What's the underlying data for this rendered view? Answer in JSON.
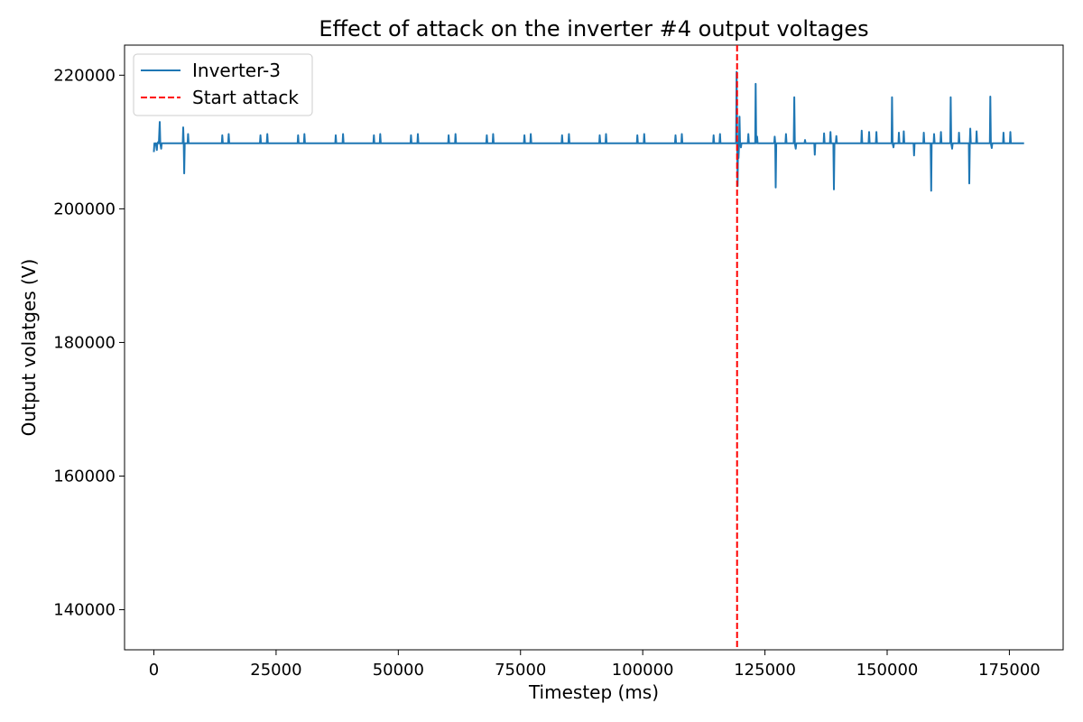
{
  "chart_data": {
    "type": "line",
    "title": "Effect of attack on the inverter #4 output voltages",
    "xlabel": "Timestep (ms)",
    "ylabel": "Output volatges (V)",
    "xlim": [
      -6000,
      186000
    ],
    "ylim": [
      134000,
      224500
    ],
    "xticks": [
      0,
      25000,
      50000,
      75000,
      100000,
      125000,
      150000,
      175000
    ],
    "xtick_labels": [
      "0",
      "25000",
      "50000",
      "75000",
      "100000",
      "125000",
      "150000",
      "175000"
    ],
    "yticks": [
      140000,
      160000,
      180000,
      200000,
      220000
    ],
    "ytick_labels": [
      "140000",
      "160000",
      "180000",
      "200000",
      "220000"
    ],
    "grid": false,
    "legend_position": "top-left",
    "baseline": 209800,
    "x_max": 178000,
    "series": [
      {
        "name": "Inverter-3",
        "color": "#1f77b4",
        "style": "solid",
        "events": [
          [
            0,
            208500
          ],
          [
            300,
            209600
          ],
          [
            600,
            208800
          ],
          [
            900,
            210000
          ],
          [
            1200,
            213000
          ],
          [
            1500,
            209000
          ],
          [
            6000,
            212200
          ],
          [
            6200,
            205300
          ],
          [
            7000,
            211200
          ],
          [
            14000,
            211000
          ],
          [
            15300,
            211200
          ],
          [
            21800,
            211000
          ],
          [
            23200,
            211200
          ],
          [
            29500,
            211000
          ],
          [
            30800,
            211200
          ],
          [
            37200,
            211000
          ],
          [
            38700,
            211200
          ],
          [
            45000,
            211000
          ],
          [
            46300,
            211200
          ],
          [
            52600,
            211000
          ],
          [
            54000,
            211200
          ],
          [
            60300,
            211000
          ],
          [
            61700,
            211200
          ],
          [
            68100,
            211000
          ],
          [
            69400,
            211200
          ],
          [
            75800,
            211000
          ],
          [
            77100,
            211200
          ],
          [
            83500,
            211000
          ],
          [
            84900,
            211200
          ],
          [
            91200,
            211000
          ],
          [
            92500,
            211200
          ],
          [
            98900,
            211000
          ],
          [
            100300,
            211200
          ],
          [
            106700,
            211000
          ],
          [
            108000,
            211200
          ],
          [
            114500,
            211000
          ],
          [
            115800,
            211200
          ],
          [
            119200,
            220500
          ],
          [
            119400,
            203400
          ],
          [
            119600,
            207600
          ],
          [
            119800,
            213800
          ],
          [
            120100,
            209200
          ],
          [
            121600,
            211200
          ],
          [
            123100,
            218700
          ],
          [
            123400,
            210800
          ],
          [
            127000,
            210800
          ],
          [
            127200,
            203200
          ],
          [
            129300,
            211200
          ],
          [
            131000,
            216700
          ],
          [
            131300,
            209000
          ],
          [
            133200,
            210300
          ],
          [
            135200,
            208100
          ],
          [
            137100,
            211300
          ],
          [
            138400,
            211500
          ],
          [
            139100,
            202900
          ],
          [
            139600,
            210900
          ],
          [
            144800,
            211700
          ],
          [
            146300,
            211500
          ],
          [
            147800,
            211500
          ],
          [
            151000,
            216700
          ],
          [
            151300,
            209200
          ],
          [
            152400,
            211400
          ],
          [
            153400,
            211600
          ],
          [
            155500,
            208000
          ],
          [
            157500,
            211400
          ],
          [
            159000,
            202700
          ],
          [
            159600,
            211200
          ],
          [
            161000,
            211500
          ],
          [
            163000,
            216700
          ],
          [
            163300,
            209000
          ],
          [
            164700,
            211400
          ],
          [
            166800,
            203800
          ],
          [
            167000,
            212000
          ],
          [
            168300,
            211600
          ],
          [
            171100,
            216800
          ],
          [
            171400,
            209100
          ],
          [
            173800,
            211400
          ],
          [
            175200,
            211500
          ]
        ]
      },
      {
        "name": "Start attack",
        "color": "#ff0000",
        "style": "dashed",
        "x": 119300
      }
    ]
  }
}
